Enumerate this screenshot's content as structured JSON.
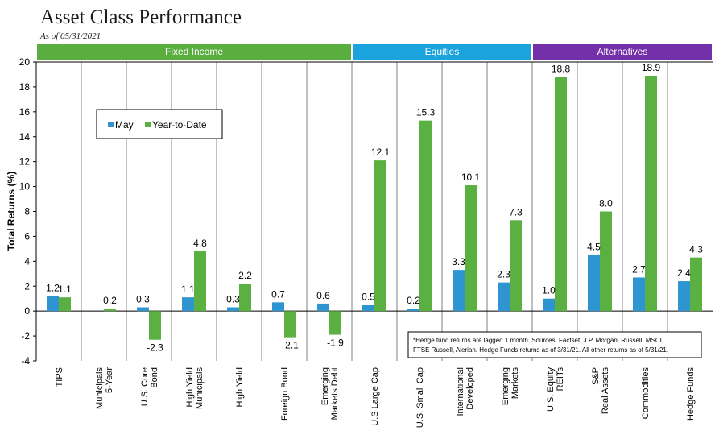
{
  "title": "Asset Class Performance",
  "subtitle": "As of 05/31/2021",
  "colors": {
    "may": "#2e95d0",
    "ytd": "#5bb042",
    "fixed_income": "#5aad3f",
    "equities": "#1aa3dc",
    "alternatives": "#7330a8",
    "grid": "#808080"
  },
  "groups": [
    {
      "label": "Fixed Income",
      "start": 0,
      "end": 6
    },
    {
      "label": "Equities",
      "start": 7,
      "end": 10
    },
    {
      "label": "Alternatives",
      "start": 11,
      "end": 14
    }
  ],
  "legend": {
    "may": "May",
    "ytd": "Year-to-Date"
  },
  "note": {
    "line1": "*Hedge fund returns are lagged 1 month.  Sources:  Factset, J.P. Morgan, Russell, MSCI,",
    "line2": "FTSE Russell, Alerian.  Hedge Funds returns as of 3/31/21.  All other returns as of 5/31/21."
  },
  "chart_data": {
    "type": "bar",
    "ylabel": "Total Returns (%)",
    "ylim": [
      -4,
      20
    ],
    "yticks": [
      -4,
      -2,
      0,
      2,
      4,
      6,
      8,
      10,
      12,
      14,
      16,
      18,
      20
    ],
    "categories": [
      [
        "TIPS"
      ],
      [
        "Municipals",
        "5-Year"
      ],
      [
        "U.S. Core",
        "Bond"
      ],
      [
        "High Yield",
        "Municipals"
      ],
      [
        "High Yield"
      ],
      [
        "Foreign Bond"
      ],
      [
        "Emerging",
        "Markets Debt"
      ],
      [
        "U.S Large Cap"
      ],
      [
        "U.S. Small Cap"
      ],
      [
        "International",
        "Developed"
      ],
      [
        "Emerging",
        "Markets"
      ],
      [
        "U.S. Equity",
        "REITs"
      ],
      [
        "S&P",
        "Real Assets"
      ],
      [
        "Commodities"
      ],
      [
        "Hedge Funds"
      ]
    ],
    "series": [
      {
        "name": "May",
        "values": [
          1.2,
          null,
          0.3,
          1.1,
          0.3,
          0.7,
          0.6,
          0.5,
          0.2,
          3.3,
          2.3,
          1.0,
          4.5,
          2.7,
          2.4
        ]
      },
      {
        "name": "Year-to-Date",
        "values": [
          1.1,
          0.2,
          -2.3,
          4.8,
          2.2,
          -2.1,
          -1.9,
          12.1,
          15.3,
          10.1,
          7.3,
          18.8,
          8.0,
          18.9,
          4.3
        ]
      }
    ],
    "legend_position": "upper-left"
  }
}
